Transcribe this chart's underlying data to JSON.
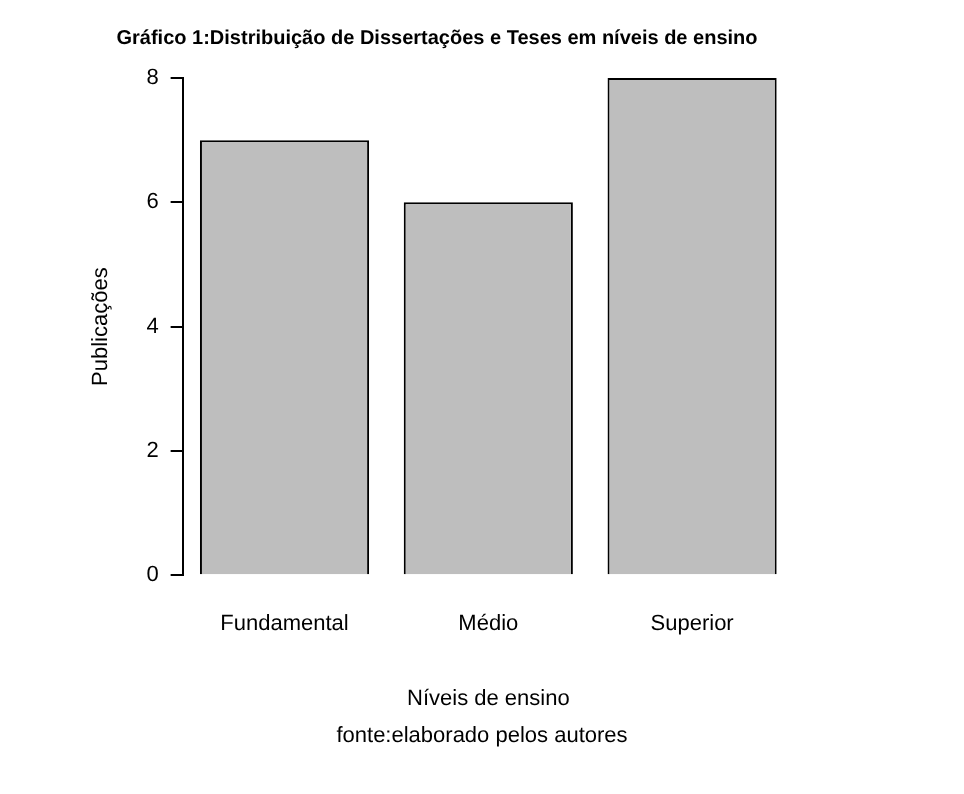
{
  "chart_data": {
    "type": "bar",
    "title": "Gráfico 1:Distribuição de Dissertações e Teses em níveis de ensino",
    "xlabel": "Níveis de ensino",
    "ylabel": "Publicações",
    "annotations": [
      "fonte:elaborado pelos autores"
    ],
    "categories": [
      "Fundamental",
      "Médio",
      "Superior"
    ],
    "values": [
      7,
      6,
      8
    ],
    "color": "#bebebe",
    "ylim": [
      0,
      8
    ],
    "yticks": [
      0,
      2,
      4,
      6,
      8
    ],
    "grid": false,
    "legend": false
  }
}
